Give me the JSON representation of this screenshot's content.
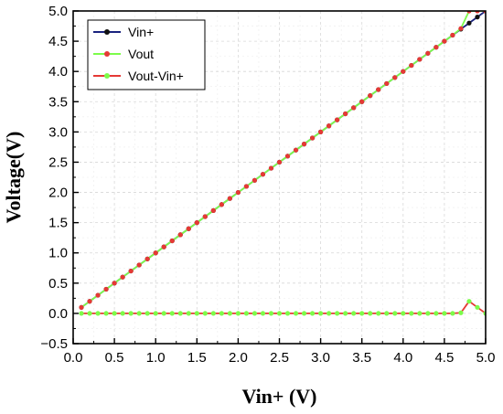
{
  "chart_data": {
    "type": "line",
    "xlabel": "Vin+ (V)",
    "ylabel": "Voltage(V)",
    "xlim": [
      0.0,
      5.0
    ],
    "ylim": [
      -0.5,
      5.0
    ],
    "xticks": [
      "0.0",
      "0.5",
      "1.0",
      "1.5",
      "2.0",
      "2.5",
      "3.0",
      "3.5",
      "4.0",
      "4.5",
      "5.0"
    ],
    "yticks": [
      "-0.5",
      "0.0",
      "0.5",
      "1.0",
      "1.5",
      "2.0",
      "2.5",
      "3.0",
      "3.5",
      "4.0",
      "4.5",
      "5.0"
    ],
    "grid": true,
    "legend_position": "top-left",
    "series": [
      {
        "name": "Vin+",
        "line_color": "#1a237e",
        "marker_color": "#111111",
        "x": [
          0.1,
          0.2,
          0.3,
          0.4,
          0.5,
          0.6,
          0.7,
          0.8,
          0.9,
          1.0,
          1.1,
          1.2,
          1.3,
          1.4,
          1.5,
          1.6,
          1.7,
          1.8,
          1.9,
          2.0,
          2.1,
          2.2,
          2.3,
          2.4,
          2.5,
          2.6,
          2.7,
          2.8,
          2.9,
          3.0,
          3.1,
          3.2,
          3.3,
          3.4,
          3.5,
          3.6,
          3.7,
          3.8,
          3.9,
          4.0,
          4.1,
          4.2,
          4.3,
          4.4,
          4.5,
          4.6,
          4.7,
          4.8,
          4.9,
          5.0
        ],
        "y": [
          0.1,
          0.2,
          0.3,
          0.4,
          0.5,
          0.6,
          0.7,
          0.8,
          0.9,
          1.0,
          1.1,
          1.2,
          1.3,
          1.4,
          1.5,
          1.6,
          1.7,
          1.8,
          1.9,
          2.0,
          2.1,
          2.2,
          2.3,
          2.4,
          2.5,
          2.6,
          2.7,
          2.8,
          2.9,
          3.0,
          3.1,
          3.2,
          3.3,
          3.4,
          3.5,
          3.6,
          3.7,
          3.8,
          3.9,
          4.0,
          4.1,
          4.2,
          4.3,
          4.4,
          4.5,
          4.6,
          4.7,
          4.8,
          4.9,
          5.0
        ]
      },
      {
        "name": "Vout",
        "line_color": "#7cfc4a",
        "marker_color": "#e53935",
        "x": [
          0.1,
          0.2,
          0.3,
          0.4,
          0.5,
          0.6,
          0.7,
          0.8,
          0.9,
          1.0,
          1.1,
          1.2,
          1.3,
          1.4,
          1.5,
          1.6,
          1.7,
          1.8,
          1.9,
          2.0,
          2.1,
          2.2,
          2.3,
          2.4,
          2.5,
          2.6,
          2.7,
          2.8,
          2.9,
          3.0,
          3.1,
          3.2,
          3.3,
          3.4,
          3.5,
          3.6,
          3.7,
          3.8,
          3.9,
          4.0,
          4.1,
          4.2,
          4.3,
          4.4,
          4.5,
          4.6,
          4.7,
          4.8,
          4.9,
          5.0
        ],
        "y": [
          0.1,
          0.2,
          0.3,
          0.4,
          0.5,
          0.6,
          0.7,
          0.8,
          0.9,
          1.0,
          1.1,
          1.2,
          1.3,
          1.4,
          1.5,
          1.6,
          1.7,
          1.8,
          1.9,
          2.0,
          2.1,
          2.2,
          2.3,
          2.4,
          2.5,
          2.6,
          2.7,
          2.8,
          2.9,
          3.0,
          3.1,
          3.2,
          3.3,
          3.4,
          3.5,
          3.6,
          3.7,
          3.8,
          3.9,
          4.0,
          4.1,
          4.2,
          4.3,
          4.4,
          4.5,
          4.6,
          4.71,
          5.0,
          5.0,
          5.0
        ]
      },
      {
        "name": "Vout-Vin+",
        "line_color": "#e53935",
        "marker_color": "#7cfc4a",
        "x": [
          0.1,
          0.2,
          0.3,
          0.4,
          0.5,
          0.6,
          0.7,
          0.8,
          0.9,
          1.0,
          1.1,
          1.2,
          1.3,
          1.4,
          1.5,
          1.6,
          1.7,
          1.8,
          1.9,
          2.0,
          2.1,
          2.2,
          2.3,
          2.4,
          2.5,
          2.6,
          2.7,
          2.8,
          2.9,
          3.0,
          3.1,
          3.2,
          3.3,
          3.4,
          3.5,
          3.6,
          3.7,
          3.8,
          3.9,
          4.0,
          4.1,
          4.2,
          4.3,
          4.4,
          4.5,
          4.6,
          4.7,
          4.8,
          4.9,
          5.0
        ],
        "y": [
          0,
          0,
          0,
          0,
          0,
          0,
          0,
          0,
          0,
          0,
          0,
          0,
          0,
          0,
          0,
          0,
          0,
          0,
          0,
          0,
          0,
          0,
          0,
          0,
          0,
          0,
          0,
          0,
          0,
          0,
          0,
          0,
          0,
          0,
          0,
          0,
          0,
          0,
          0,
          0,
          0,
          0,
          0,
          0,
          0,
          0,
          0.01,
          0.2,
          0.1,
          0.0
        ]
      }
    ]
  }
}
